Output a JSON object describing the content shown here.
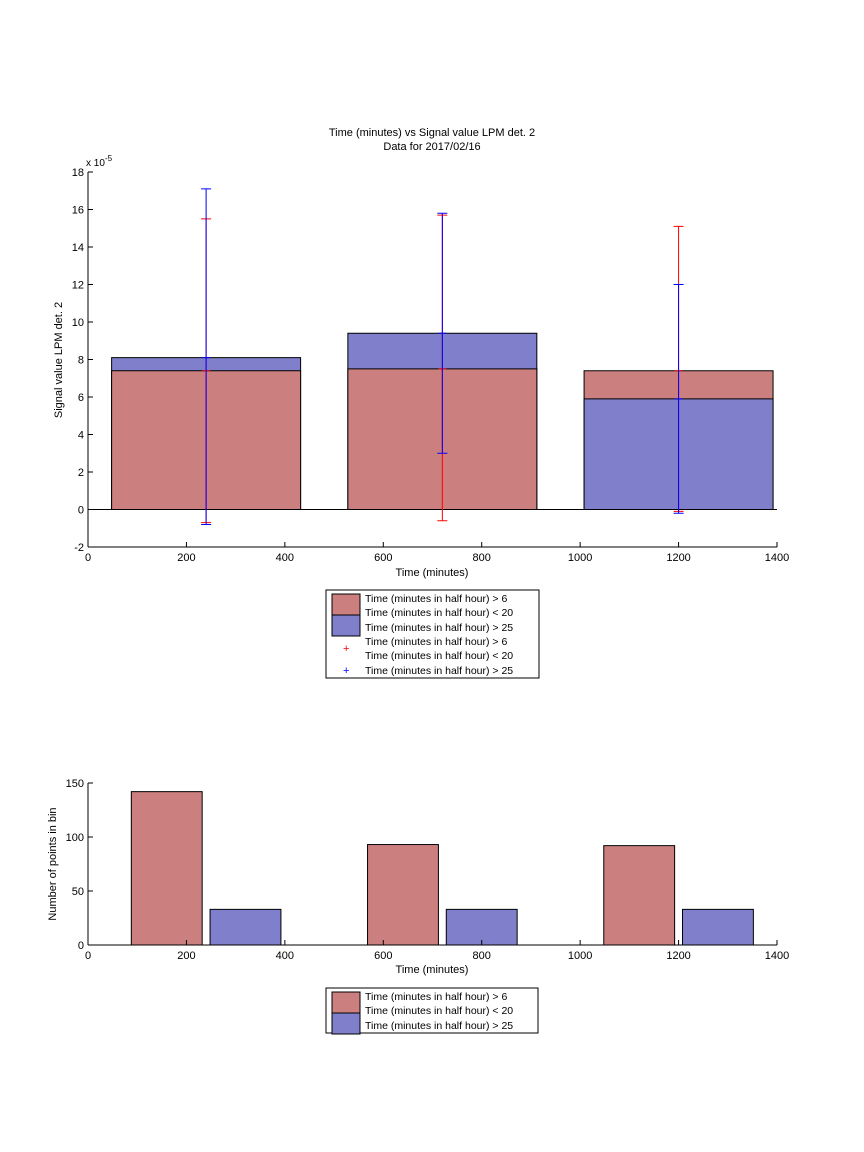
{
  "colors": {
    "red_fill": "#cc7f7f",
    "blue_fill": "#7f7fcc",
    "red_err": "#ff0000",
    "blue_err": "#0000ff"
  },
  "chart_data": [
    {
      "type": "bar",
      "title": "Time (minutes) vs Signal value LPM det. 2",
      "subtitle": "Data for 2017/02/16",
      "xlabel": "Time (minutes)",
      "ylabel": "Signal value LPM det. 2",
      "exponent_label": "x 10",
      "exponent_power": "-5",
      "xlim": [
        0,
        1400
      ],
      "ylim": [
        -2,
        18
      ],
      "xticks": [
        0,
        200,
        400,
        600,
        800,
        1000,
        1200,
        1400
      ],
      "yticks": [
        -2,
        0,
        2,
        4,
        6,
        8,
        10,
        12,
        14,
        16,
        18
      ],
      "grid": false,
      "legend_position": "below",
      "bar_half_width": 192,
      "x": [
        240,
        720,
        1200
      ],
      "series": [
        {
          "name": "Time (minutes in half hour) > 6 Time (minutes in half hour) < 20",
          "color": "#cc7f7f",
          "values": [
            7.4,
            7.5,
            7.4
          ],
          "err_low": [
            -0.7,
            -0.6,
            -0.1
          ],
          "err_high": [
            15.5,
            15.7,
            15.1
          ]
        },
        {
          "name": "Time (minutes in half hour) > 25",
          "color": "#7f7fcc",
          "values": [
            8.1,
            9.4,
            5.9
          ],
          "err_low": [
            -0.8,
            3.0,
            -0.2
          ],
          "err_high": [
            17.1,
            15.8,
            12.0
          ]
        }
      ],
      "legend": [
        "Time (minutes in half hour) > 6",
        "Time (minutes in half hour) < 20",
        "Time (minutes in half hour) > 25",
        "Time (minutes in half hour) > 6",
        "Time (minutes in half hour) < 20",
        "Time (minutes in half hour) > 25"
      ]
    },
    {
      "type": "bar",
      "xlabel": "Time (minutes)",
      "ylabel": "Number of points in bin",
      "xlim": [
        0,
        1400
      ],
      "ylim": [
        0,
        150
      ],
      "xticks": [
        0,
        200,
        400,
        600,
        800,
        1000,
        1200,
        1400
      ],
      "yticks": [
        0,
        50,
        100,
        150
      ],
      "grid": false,
      "legend_position": "below",
      "series": [
        {
          "name": "Time (minutes in half hour) > 6 Time (minutes in half hour) < 20",
          "color": "#cc7f7f",
          "x": [
            160,
            640,
            1120
          ],
          "values": [
            142,
            93,
            92
          ]
        },
        {
          "name": "Time (minutes in half hour) > 25",
          "color": "#7f7fcc",
          "x": [
            320,
            800,
            1280
          ],
          "values": [
            33,
            33,
            33
          ]
        }
      ],
      "bar_width": 144,
      "legend": [
        "Time (minutes in half hour) > 6",
        "Time (minutes in half hour) < 20",
        "Time (minutes in half hour) > 25"
      ]
    }
  ]
}
